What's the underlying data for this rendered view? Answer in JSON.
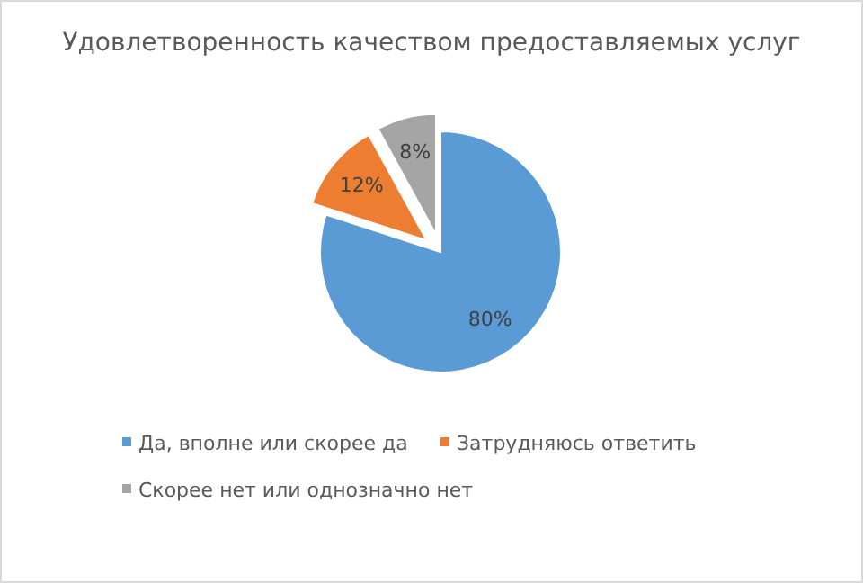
{
  "chart_data": {
    "type": "pie",
    "title": "Удовлетворенность качеством предоставляемых услуг",
    "categories": [
      "Да, вполне или скорее да",
      "Затрудняюсь ответить",
      "Скорее нет или однозначно нет"
    ],
    "values": [
      80,
      12,
      8
    ],
    "colors": [
      "#5b9bd5",
      "#ed7d31",
      "#a5a5a5"
    ],
    "value_labels": [
      "80%",
      "12%",
      "8%"
    ],
    "legend": "bottom"
  }
}
